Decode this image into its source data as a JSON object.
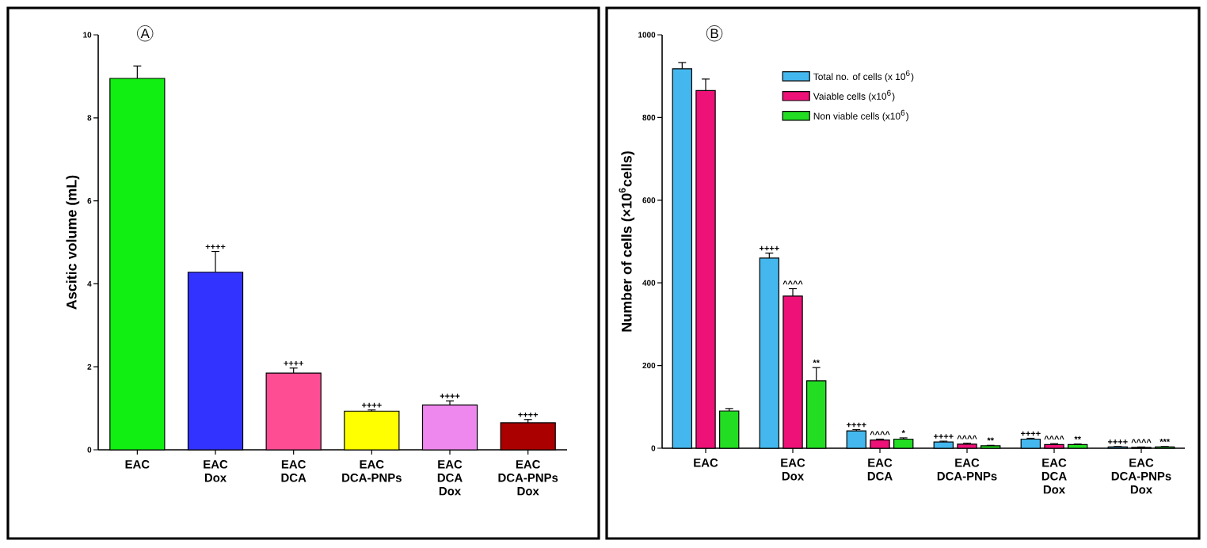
{
  "chart_data": [
    {
      "type": "bar",
      "title": "A",
      "ylabel": "Ascitic volume (mL)",
      "categories": [
        "EAC",
        "EAC\nDox",
        "EAC\nDCA",
        "EAC\nDCA-PNPs",
        "EAC\nDCA\nDox",
        "EAC\nDCA-PNPs\nDox"
      ],
      "values": [
        8.95,
        4.28,
        1.85,
        0.93,
        1.08,
        0.65
      ],
      "errors": [
        0.3,
        0.5,
        0.12,
        0.03,
        0.1,
        0.08
      ],
      "value_labels": [
        null,
        "++++",
        "++++",
        "++++",
        "++++",
        "++++"
      ],
      "colors": [
        "#11ee11",
        "#3333ff",
        "#ff4d94",
        "#ffff00",
        "#ee88ee",
        "#aa0000"
      ],
      "ylim": [
        0,
        10
      ],
      "yticks": [
        0,
        2,
        4,
        6,
        8,
        10
      ]
    },
    {
      "type": "bar",
      "title": "B",
      "ylabel": "Number of cells (×10$^{6}$cells)",
      "categories": [
        "EAC",
        "EAC\nDox",
        "EAC\nDCA",
        "EAC\nDCA-PNPs",
        "EAC\nDCA\nDox",
        "EAC\nDCA-PNPs\nDox"
      ],
      "series": [
        {
          "name": "Total no. of cells (x 10$^{6}$)",
          "color": "#44b8ee",
          "values": [
            918,
            460,
            42,
            15,
            22,
            3
          ],
          "errors": [
            15,
            12,
            3,
            2,
            2,
            1
          ],
          "value_labels": [
            null,
            "++++",
            "++++",
            "++++",
            "++++",
            "++++"
          ]
        },
        {
          "name": "Vaiable cells (x10$^{6}$)",
          "color": "#ee1177",
          "values": [
            865,
            368,
            20,
            10,
            9,
            2
          ],
          "errors": [
            28,
            18,
            2,
            2,
            2,
            1
          ],
          "value_labels": [
            null,
            "^^^^",
            "^^^^",
            "^^^^",
            "^^^^",
            "^^^^"
          ]
        },
        {
          "name": "Non viable cells (x10$^{6}$)",
          "color": "#22dd22",
          "values": [
            90,
            163,
            22,
            6,
            9,
            3
          ],
          "errors": [
            6,
            32,
            3,
            1,
            1,
            1
          ],
          "value_labels": [
            null,
            "**",
            "*",
            "**",
            "**",
            "***"
          ]
        }
      ],
      "legend": "top",
      "ylim": [
        0,
        1000
      ],
      "yticks": [
        0,
        200,
        400,
        600,
        800,
        1000
      ]
    }
  ]
}
